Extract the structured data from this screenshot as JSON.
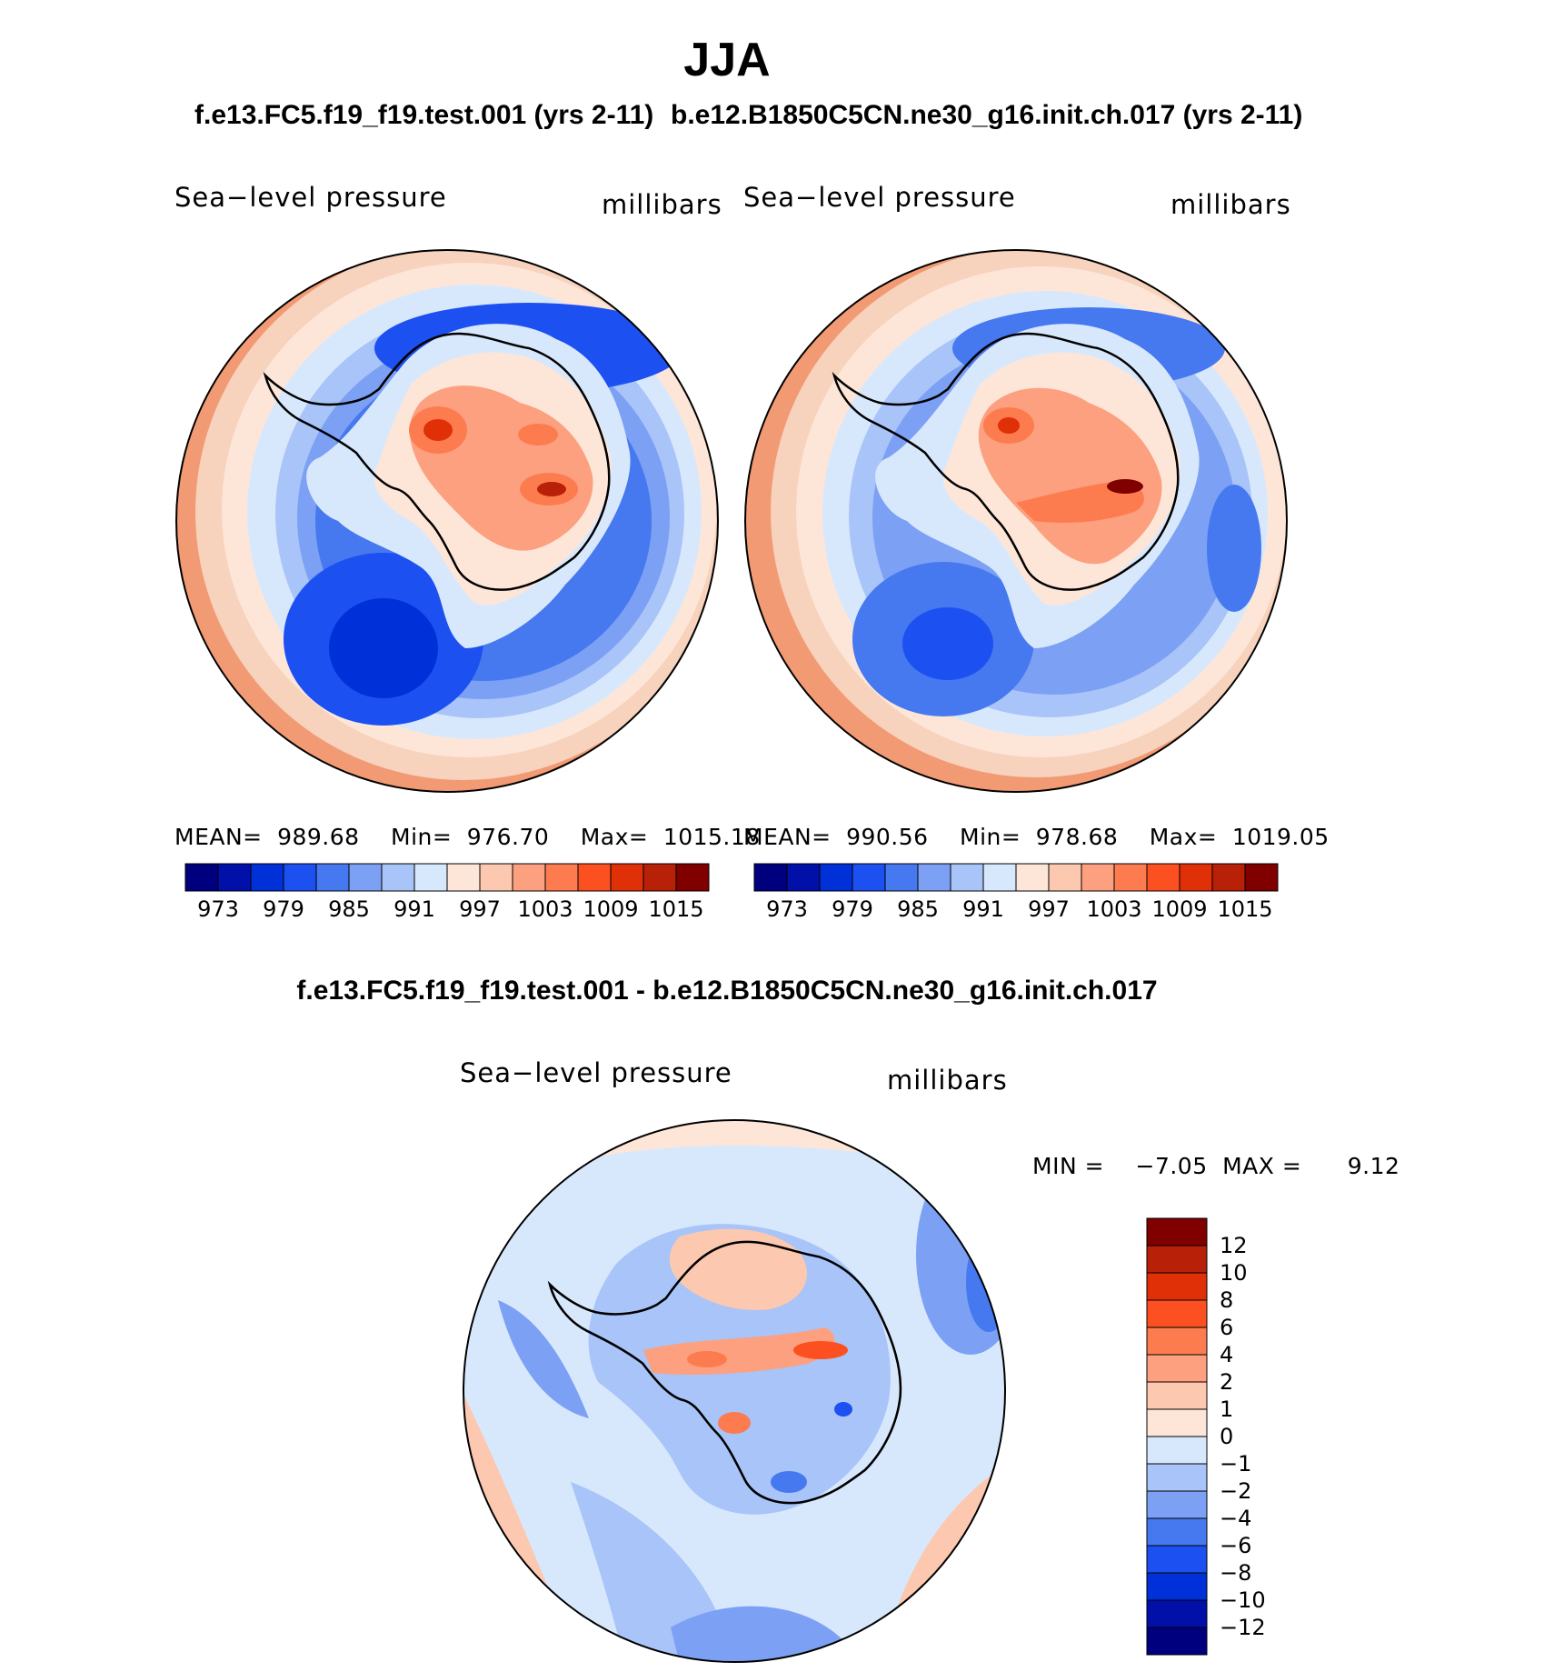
{
  "figure": {
    "title": "JJA",
    "panel1_heading": "f.e13.FC5.f19_f19.test.001 (yrs 2-11)",
    "panel2_heading": "b.e12.B1850C5CN.ne30_g16.init.ch.017 (yrs 2-11)",
    "diff_heading": "f.e13.FC5.f19_f19.test.001 - b.e12.B1850C5CN.ne30_g16.init.ch.017"
  },
  "panels": [
    {
      "variable": "Sea−level pressure",
      "units": "millibars",
      "mean_label": "MEAN=",
      "mean": "989.68",
      "min_label": "Min=",
      "min": "976.70",
      "max_label": "Max=",
      "max": "1015.18"
    },
    {
      "variable": "Sea−level pressure",
      "units": "millibars",
      "mean_label": "MEAN=",
      "mean": "990.56",
      "min_label": "Min=",
      "min": "978.68",
      "max_label": "Max=",
      "max": "1019.05"
    }
  ],
  "diff_panel": {
    "variable": "Sea−level pressure",
    "units": "millibars",
    "min_label": "MIN =",
    "min": "−7.05",
    "max_label": "MAX =",
    "max": "9.12"
  },
  "colorbar_abs": {
    "colors": [
      "#00007f",
      "#0010a8",
      "#0030d8",
      "#1c50f0",
      "#4678f0",
      "#7ca0f4",
      "#a8c4f8",
      "#d8e8fc",
      "#fde6d8",
      "#fcc8b0",
      "#fca080",
      "#fc7c50",
      "#fc5020",
      "#e03008",
      "#b82008",
      "#800000"
    ],
    "tick_labels": [
      "973",
      "979",
      "985",
      "991",
      "997",
      "1003",
      "1009",
      "1015"
    ]
  },
  "colorbar_diff": {
    "colors": [
      "#00007f",
      "#0010a8",
      "#0030d8",
      "#1c50f0",
      "#4678f0",
      "#7ca0f4",
      "#a8c4f8",
      "#d8e8fc",
      "#fde6d8",
      "#fcc8b0",
      "#fca080",
      "#fc7c50",
      "#fc5020",
      "#e03008",
      "#b82008",
      "#800000"
    ],
    "tick_labels": [
      "12",
      "10",
      "8",
      "6",
      "4",
      "2",
      "1",
      "0",
      "−1",
      "−2",
      "−4",
      "−6",
      "−8",
      "−10",
      "−12"
    ]
  },
  "map_colors": {
    "ocean_far": "#f7d2bc",
    "ocean_edge": "#f29a74",
    "ring_light": "#d8e8fc",
    "ring_mid": "#a8c4f8",
    "ring_blue": "#7ca0f4",
    "ring_deep": "#4678f0",
    "ring_core": "#1c50f0",
    "land_pale": "#fde6d8",
    "land_warm": "#fca080",
    "land_hot": "#fc7c50",
    "land_max": "#b82008",
    "diff_base": "#d8e8fc",
    "diff_blue": "#a8c4f8",
    "diff_warm": "#fcc8b0"
  }
}
